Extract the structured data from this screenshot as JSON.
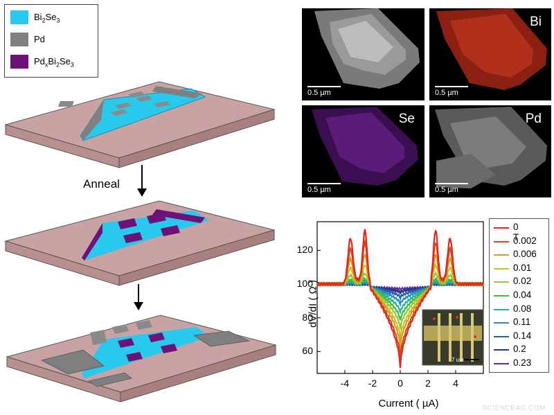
{
  "legend": {
    "items": [
      {
        "label": "Bi2Se3",
        "color": "#29c9ee"
      },
      {
        "label": "Pd",
        "color": "#7f7f7f"
      },
      {
        "label": "PdxBi2Se3",
        "color": "#6e1178"
      }
    ]
  },
  "process": {
    "anneal_label": "Anneal"
  },
  "sem_panels": [
    {
      "label": "",
      "scale": "0.5 µm",
      "tone": "gray"
    },
    {
      "label": "Bi",
      "scale": "0.5 µm",
      "tone": "red"
    },
    {
      "label": "Se",
      "scale": "0.5 µm",
      "tone": "purple"
    },
    {
      "label": "Pd",
      "scale": "0.5 µm",
      "tone": "lightgray"
    }
  ],
  "chart_data": {
    "type": "line",
    "xlabel": "Current ( µA)",
    "ylabel": "dV/dI ( Ω )",
    "xlim": [
      -6,
      6
    ],
    "ylim": [
      47,
      137
    ],
    "xticks": [
      -4,
      -2,
      0,
      2,
      4
    ],
    "yticks": [
      60,
      80,
      100,
      120
    ],
    "legend_position": "right-outside",
    "series": [
      {
        "name": "0 T",
        "color": "#e8241c",
        "min": 50,
        "peak": 131,
        "base": 100
      },
      {
        "name": "0.002",
        "color": "#d14c1a",
        "min": 55,
        "peak": 124,
        "base": 100
      },
      {
        "name": "0.006",
        "color": "#d69a1d",
        "min": 62,
        "peak": 117,
        "base": 100
      },
      {
        "name": "0.01",
        "color": "#c8c21f",
        "min": 67,
        "peak": 111,
        "base": 100
      },
      {
        "name": "0.02",
        "color": "#8fc83a",
        "min": 73,
        "peak": 106,
        "base": 100
      },
      {
        "name": "0.04",
        "color": "#3dbb3a",
        "min": 78,
        "peak": 103,
        "base": 100
      },
      {
        "name": "0.08",
        "color": "#26b39a",
        "min": 83,
        "peak": 102,
        "base": 100
      },
      {
        "name": "0.11",
        "color": "#2a8fc0",
        "min": 88,
        "peak": 101,
        "base": 100
      },
      {
        "name": "0.14",
        "color": "#2a5fa8",
        "min": 92,
        "peak": 100.5,
        "base": 100
      },
      {
        "name": "0.2",
        "color": "#27348f",
        "min": 95,
        "peak": 100,
        "base": 100
      },
      {
        "name": "0.23",
        "color": "#6a2b92",
        "min": 97,
        "peak": 100,
        "base": 100
      }
    ]
  },
  "inset": {
    "scale": "7 um"
  },
  "watermark": "SCIENCEAG.COM"
}
